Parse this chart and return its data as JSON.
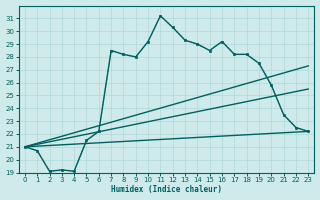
{
  "xlabel": "Humidex (Indice chaleur)",
  "ylabel": "",
  "bg_color": "#ceeaea",
  "grid_color": "#b0d8d8",
  "line_color": "#006060",
  "xlim": [
    -0.5,
    23.5
  ],
  "ylim": [
    19,
    32
  ],
  "xticks": [
    0,
    1,
    2,
    3,
    4,
    5,
    6,
    7,
    8,
    9,
    10,
    11,
    12,
    13,
    14,
    15,
    16,
    17,
    18,
    19,
    20,
    21,
    22,
    23
  ],
  "yticks": [
    19,
    20,
    21,
    22,
    23,
    24,
    25,
    26,
    27,
    28,
    29,
    30,
    31
  ],
  "series_main": {
    "x": [
      0,
      1,
      2,
      3,
      4,
      5,
      6,
      7,
      8,
      9,
      10,
      11,
      12,
      13,
      14,
      15,
      16,
      17,
      18,
      19,
      20,
      21,
      22,
      23
    ],
    "y": [
      21.0,
      20.7,
      19.1,
      19.2,
      19.1,
      21.5,
      22.2,
      28.5,
      28.2,
      28.0,
      29.2,
      31.2,
      30.3,
      29.3,
      29.0,
      28.5,
      29.2,
      28.2,
      28.2,
      27.5,
      25.8,
      23.5,
      22.5,
      22.2
    ]
  },
  "series_dotted": {
    "x": [
      0,
      1,
      2,
      3,
      4,
      5,
      6,
      7,
      8,
      9,
      10,
      11,
      12,
      13,
      14,
      15,
      16,
      17,
      18,
      19,
      20,
      21,
      22,
      23
    ],
    "y": [
      21.0,
      20.7,
      19.1,
      19.2,
      19.1,
      21.5,
      22.2,
      28.5,
      28.2,
      28.0,
      29.2,
      31.2,
      30.3,
      29.3,
      29.0,
      28.5,
      29.2,
      28.2,
      28.2,
      27.5,
      25.8,
      23.5,
      22.5,
      22.2
    ]
  },
  "straight_lines": [
    {
      "x0": 0,
      "y0": 21.0,
      "x1": 23,
      "y1": 22.2
    },
    {
      "x0": 0,
      "y0": 21.0,
      "x1": 23,
      "y1": 25.5
    },
    {
      "x0": 0,
      "y0": 21.0,
      "x1": 23,
      "y1": 27.3
    }
  ]
}
